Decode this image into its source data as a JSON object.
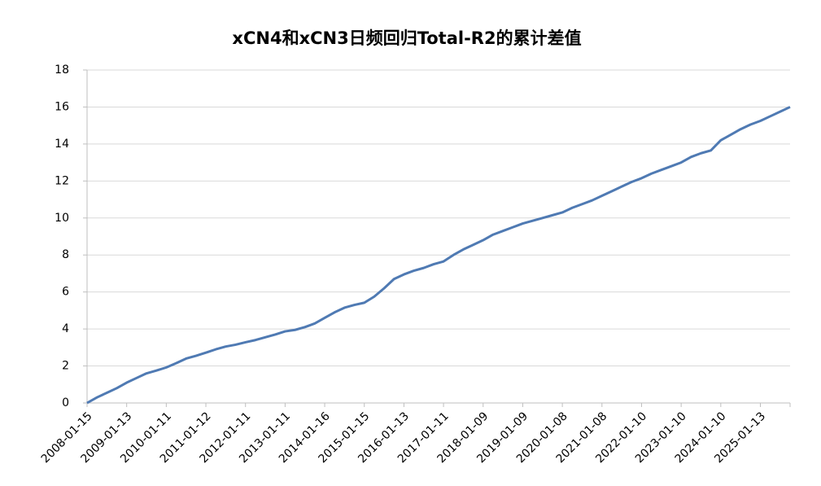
{
  "chart_data": {
    "type": "line",
    "title": "xCN4和xCN3日频回归Total-R2的累计差值",
    "categories": [
      "2008-01-15",
      null,
      null,
      null,
      "2009-01-13",
      null,
      null,
      null,
      "2010-01-11",
      null,
      null,
      null,
      "2011-01-12",
      null,
      null,
      null,
      "2012-01-11",
      null,
      null,
      null,
      "2013-01-11",
      null,
      null,
      null,
      "2014-01-16",
      null,
      null,
      null,
      "2015-01-15",
      null,
      null,
      null,
      "2016-01-13",
      null,
      null,
      null,
      "2017-01-11",
      null,
      null,
      null,
      "2018-01-09",
      null,
      null,
      null,
      "2019-01-09",
      null,
      null,
      null,
      "2020-01-08",
      null,
      null,
      null,
      "2021-01-08",
      null,
      null,
      null,
      "2022-01-10",
      null,
      null,
      null,
      "2023-01-10",
      null,
      null,
      null,
      "2024-01-10",
      null,
      null,
      null,
      "2025-01-13",
      null,
      null,
      null
    ],
    "values": [
      0,
      0.3,
      0.55,
      0.8,
      1.1,
      1.35,
      1.6,
      1.75,
      1.92,
      2.15,
      2.4,
      2.55,
      2.72,
      2.9,
      3.05,
      3.15,
      3.28,
      3.4,
      3.55,
      3.7,
      3.87,
      3.95,
      4.1,
      4.3,
      4.6,
      4.9,
      5.15,
      5.3,
      5.42,
      5.75,
      6.2,
      6.7,
      6.95,
      7.15,
      7.3,
      7.5,
      7.65,
      8.0,
      8.3,
      8.55,
      8.8,
      9.1,
      9.3,
      9.5,
      9.7,
      9.85,
      10.0,
      10.15,
      10.3,
      10.55,
      10.75,
      10.95,
      11.2,
      11.45,
      11.7,
      11.95,
      12.15,
      12.4,
      12.6,
      12.8,
      13.0,
      13.3,
      13.5,
      13.65,
      14.2,
      14.5,
      14.8,
      15.05,
      15.25,
      15.5,
      15.75,
      16.0
    ],
    "color": "#4f7ab3",
    "ylim": [
      0,
      18
    ],
    "yticks": [
      0,
      2,
      4,
      6,
      8,
      10,
      12,
      14,
      16,
      18
    ],
    "grid": true
  }
}
